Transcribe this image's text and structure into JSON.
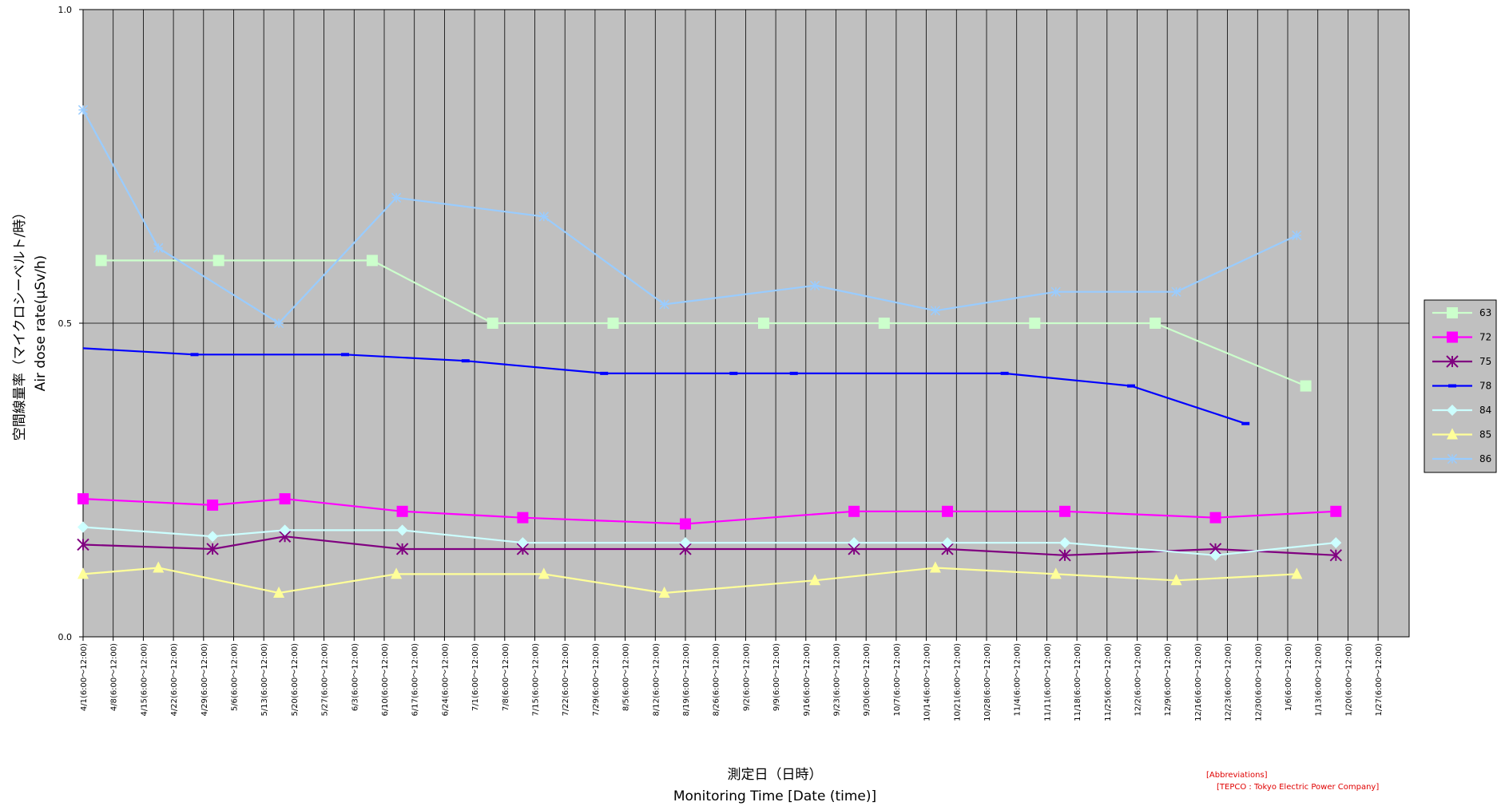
{
  "chart_data": {
    "type": "line",
    "ylim": [
      0,
      1.0
    ],
    "y_ticks": [
      "0.0",
      "0.5",
      "1.0"
    ],
    "ylabel_ja": "空間線量率（マイクロシーベルト/時）",
    "ylabel_en": "Air dose rate(μSv/h)",
    "xlabel_ja": "測定日（日時）",
    "xlabel_en": "Monitoring Time [Date (time)]",
    "grid": true,
    "legend_position": "right",
    "categories": [
      "4/1(6:00～12:00)",
      "4/8(6:00～12:00)",
      "4/15(6:00～12:00)",
      "4/22(6:00～12:00)",
      "4/29(6:00～12:00)",
      "5/6(6:00～12:00)",
      "5/13(6:00～12:00)",
      "5/20(6:00～12:00)",
      "5/27(6:00～12:00)",
      "6/3(6:00～12:00)",
      "6/10(6:00～12:00)",
      "6/17(6:00～12:00)",
      "6/24(6:00～12:00)",
      "7/1(6:00～12:00)",
      "7/8(6:00～12:00)",
      "7/15(6:00～12:00)",
      "7/22(6:00～12:00)",
      "7/29(6:00～12:00)",
      "8/5(6:00～12:00)",
      "8/12(6:00～12:00)",
      "8/19(6:00～12:00)",
      "8/26(6:00～12:00)",
      "9/2(6:00～12:00)",
      "9/9(6:00～12:00)",
      "9/16(6:00～12:00)",
      "9/23(6:00～12:00)",
      "9/30(6:00～12:00)",
      "10/7(6:00～12:00)",
      "10/14(6:00～12:00)",
      "10/21(6:00～12:00)",
      "10/28(6:00～12:00)",
      "11/4(6:00～12:00)",
      "11/11(6:00～12:00)",
      "11/18(6:00～12:00)",
      "11/25(6:00～12:00)",
      "12/2(6:00～12:00)",
      "12/9(6:00～12:00)",
      "12/16(6:00～12:00)",
      "12/23(6:00～12:00)",
      "12/30(6:00～12:00)",
      "1/6(6:00～12:00)",
      "1/13(6:00～12:00)",
      "1/20(6:00～12:00)",
      "1/27(6:00～12:00)"
    ],
    "series": [
      {
        "name": "63",
        "color": "#ccffcc",
        "marker": "square",
        "points": [
          [
            0.6,
            0.6
          ],
          [
            4.5,
            0.6
          ],
          [
            9.6,
            0.6
          ],
          [
            13.6,
            0.5
          ],
          [
            17.6,
            0.5
          ],
          [
            22.6,
            0.5
          ],
          [
            26.6,
            0.5
          ],
          [
            31.6,
            0.5
          ],
          [
            35.6,
            0.5
          ],
          [
            40.6,
            0.4
          ]
        ]
      },
      {
        "name": "72",
        "color": "#ff00ff",
        "marker": "square",
        "points": [
          [
            0,
            0.22
          ],
          [
            4.3,
            0.21
          ],
          [
            6.7,
            0.22
          ],
          [
            10.6,
            0.2
          ],
          [
            14.6,
            0.19
          ],
          [
            20.0,
            0.18
          ],
          [
            25.6,
            0.2
          ],
          [
            28.7,
            0.2
          ],
          [
            32.6,
            0.2
          ],
          [
            37.6,
            0.19
          ],
          [
            41.6,
            0.2
          ]
        ]
      },
      {
        "name": "75",
        "color": "#800080",
        "marker": "x-star",
        "points": [
          [
            0,
            0.147
          ],
          [
            4.3,
            0.14
          ],
          [
            6.7,
            0.16
          ],
          [
            10.6,
            0.14
          ],
          [
            14.6,
            0.14
          ],
          [
            20.0,
            0.14
          ],
          [
            25.6,
            0.14
          ],
          [
            28.7,
            0.14
          ],
          [
            32.6,
            0.13
          ],
          [
            37.6,
            0.14
          ],
          [
            41.6,
            0.13
          ]
        ]
      },
      {
        "name": "78",
        "color": "#0000ff",
        "marker": "dash",
        "points": [
          [
            0,
            0.46
          ],
          [
            3.7,
            0.45
          ],
          [
            8.7,
            0.45
          ],
          [
            12.7,
            0.44
          ],
          [
            17.3,
            0.42
          ],
          [
            21.6,
            0.42
          ],
          [
            23.6,
            0.42
          ],
          [
            30.6,
            0.42
          ],
          [
            34.8,
            0.4
          ],
          [
            38.6,
            0.34
          ]
        ]
      },
      {
        "name": "84",
        "color": "#ccffff",
        "marker": "diamond",
        "points": [
          [
            0,
            0.175
          ],
          [
            4.3,
            0.16
          ],
          [
            6.7,
            0.17
          ],
          [
            10.6,
            0.17
          ],
          [
            14.6,
            0.15
          ],
          [
            20.0,
            0.15
          ],
          [
            25.6,
            0.15
          ],
          [
            28.7,
            0.15
          ],
          [
            32.6,
            0.15
          ],
          [
            37.6,
            0.13
          ],
          [
            41.6,
            0.15
          ]
        ]
      },
      {
        "name": "85",
        "color": "#ffff99",
        "marker": "triangle",
        "points": [
          [
            0,
            0.1
          ],
          [
            2.5,
            0.11
          ],
          [
            6.5,
            0.07
          ],
          [
            10.4,
            0.1
          ],
          [
            15.3,
            0.1
          ],
          [
            19.3,
            0.07
          ],
          [
            24.3,
            0.09
          ],
          [
            28.3,
            0.11
          ],
          [
            32.3,
            0.1
          ],
          [
            36.3,
            0.09
          ],
          [
            40.3,
            0.1
          ]
        ]
      },
      {
        "name": "86",
        "color": "#99ccff",
        "marker": "star",
        "points": [
          [
            0,
            0.84
          ],
          [
            2.5,
            0.62
          ],
          [
            6.5,
            0.5
          ],
          [
            10.4,
            0.7
          ],
          [
            15.3,
            0.67
          ],
          [
            19.3,
            0.53
          ],
          [
            24.3,
            0.56
          ],
          [
            28.3,
            0.52
          ],
          [
            32.3,
            0.55
          ],
          [
            36.3,
            0.55
          ],
          [
            40.3,
            0.64
          ]
        ]
      }
    ]
  },
  "annotations": {
    "abbrev_title": "[Abbreviations]",
    "abbrev_tepco": "[TEPCO : Tokyo Electric Power Company]"
  }
}
